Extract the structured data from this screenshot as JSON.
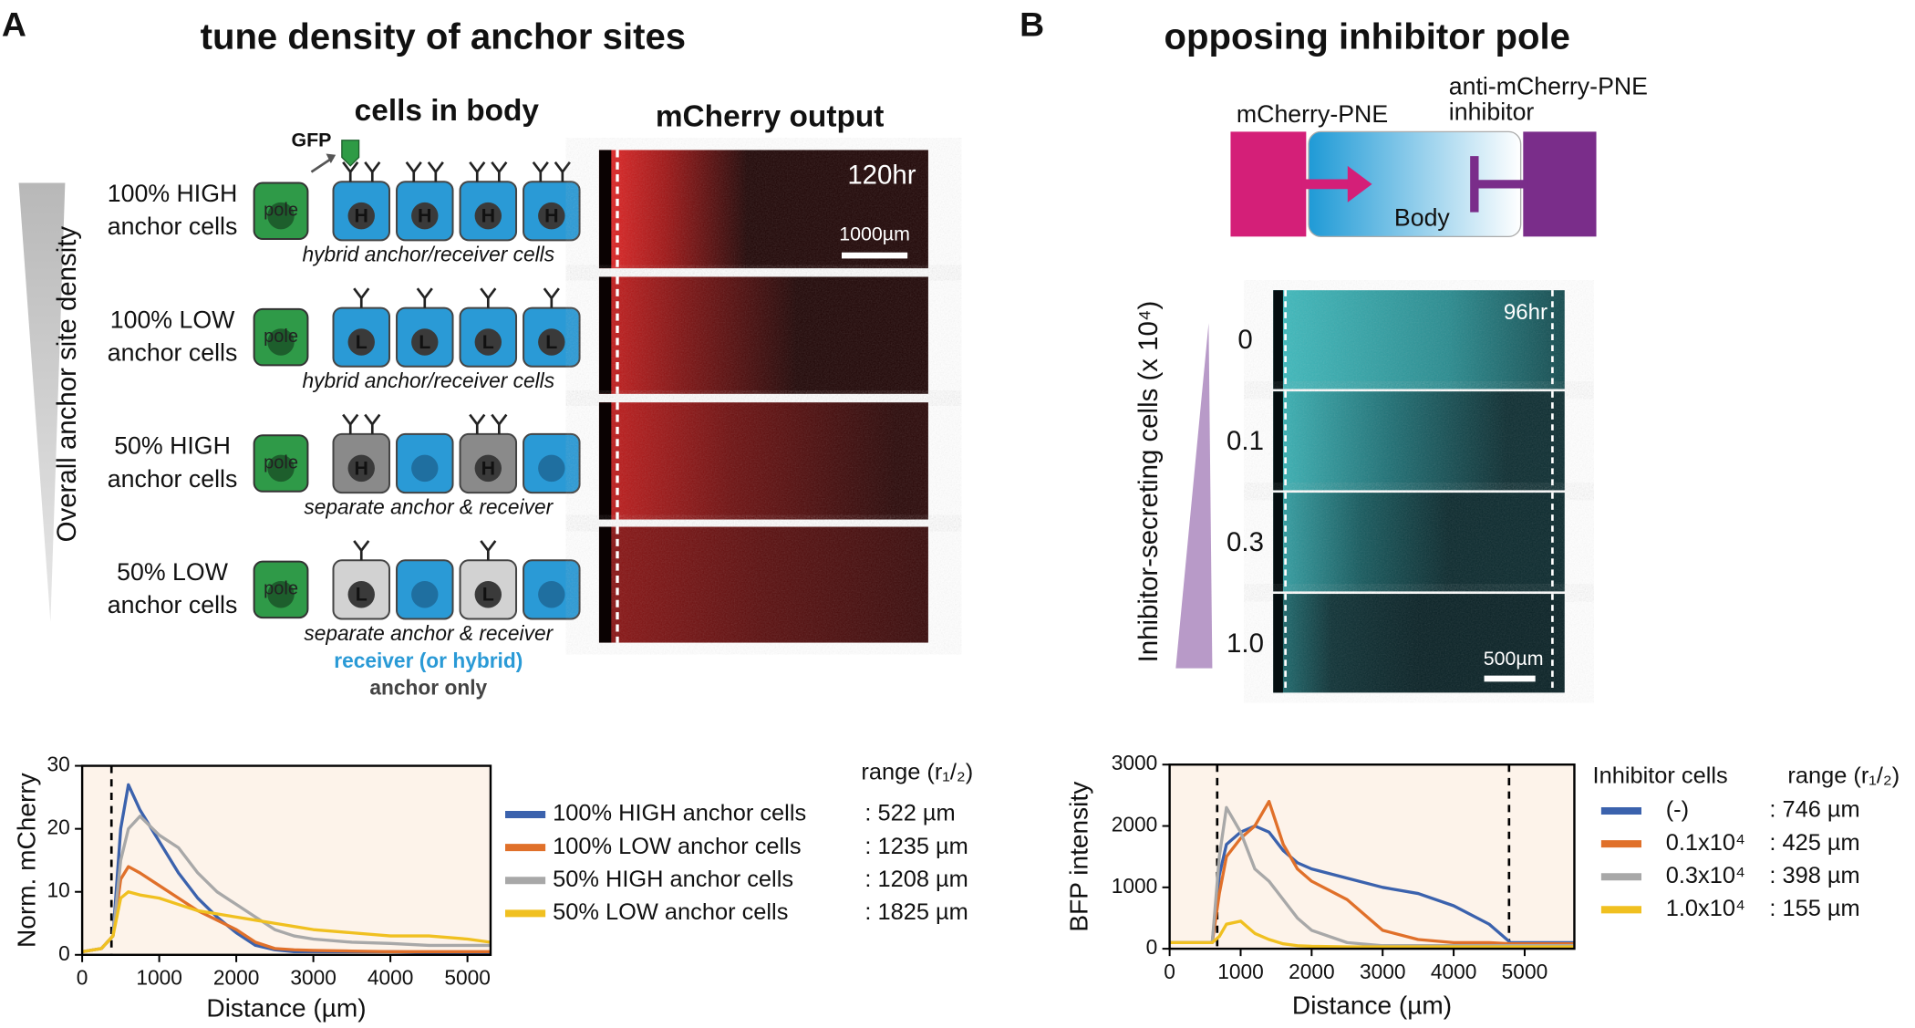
{
  "panel_a": {
    "letter": "A",
    "title": "tune density of anchor sites",
    "diagram_title": "cells in body",
    "image_title": "mCherry output",
    "axis_label": "Overall anchor site density",
    "gfp": "GFP",
    "pole": "pole",
    "rows": [
      {
        "label": [
          "100% HIGH",
          "anchor cells"
        ],
        "cells": [
          "H",
          "H",
          "H",
          "H"
        ],
        "caption": "hybrid anchor/receiver cells"
      },
      {
        "label": [
          "100% LOW",
          "anchor cells"
        ],
        "cells": [
          "L",
          "L",
          "L",
          "L"
        ],
        "caption": "hybrid anchor/receiver cells"
      },
      {
        "label": [
          "50% HIGH",
          "anchor cells"
        ],
        "cells": [
          "H",
          null,
          "H",
          null
        ],
        "caption": "separate anchor & receiver"
      },
      {
        "label": [
          "50% LOW",
          "anchor cells"
        ],
        "cells": [
          "L",
          null,
          "L",
          null
        ],
        "caption": "separate anchor & receiver"
      }
    ],
    "key": [
      "receiver (or hybrid)",
      "anchor only"
    ],
    "time": "120hr",
    "scale": "1000µm"
  },
  "panel_b": {
    "letter": "B",
    "title": "opposing inhibitor pole",
    "pole_label": "mCherry-PNE",
    "inhibitor_label": [
      "anti-mCherry-PNE",
      "inhibitor"
    ],
    "body": "Body",
    "axis_label": "Inhibitor-secreting cells (x 10⁴)",
    "rows": [
      "0",
      "0.1",
      "0.3",
      "1.0"
    ],
    "time": "96hr",
    "scale": "500µm"
  },
  "chart_data": [
    {
      "type": "line",
      "xlabel": "Distance (µm)",
      "ylabel": "Norm. mCherry",
      "x": [
        0,
        250,
        400,
        500,
        600,
        750,
        1000,
        1250,
        1500,
        1750,
        2000,
        2250,
        2500,
        2750,
        3000,
        3500,
        4000,
        4500,
        5000,
        5300
      ],
      "xlim": [
        0,
        5300
      ],
      "xticks": [
        0,
        1000,
        2000,
        3000,
        4000,
        5000
      ],
      "ylim": [
        0,
        30
      ],
      "yticks": [
        0,
        10,
        20,
        30
      ],
      "vlines": [
        380
      ],
      "range_title": "range (r₁/₂)",
      "series": [
        {
          "name": "100% HIGH anchor cells",
          "color": "#3b62ad",
          "range_label": ": 522 µm",
          "values": [
            0.5,
            1,
            3,
            20,
            27,
            23,
            18,
            13,
            9,
            6,
            3.5,
            1.5,
            0.8,
            0.5,
            0.5,
            0.5,
            0.5,
            0.4,
            0.4,
            0.4
          ]
        },
        {
          "name": "100% LOW anchor cells",
          "color": "#e0702a",
          "range_label": ": 1235 µm",
          "values": [
            0.5,
            1,
            3,
            12,
            14,
            13,
            11,
            9,
            7,
            5.5,
            4,
            2,
            1,
            0.8,
            0.7,
            0.6,
            0.5,
            0.5,
            0.5,
            0.5
          ]
        },
        {
          "name": "50% HIGH anchor cells",
          "color": "#a8a8a8",
          "range_label": ": 1208 µm",
          "values": [
            0.5,
            1,
            3,
            15,
            20,
            22,
            19,
            17,
            13,
            10,
            8,
            6,
            4,
            3,
            2.5,
            2,
            1.8,
            1.5,
            1.5,
            1.5
          ]
        },
        {
          "name": "50% LOW anchor cells",
          "color": "#f0c020",
          "range_label": ": 1825 µm",
          "values": [
            0.5,
            1,
            3,
            9,
            10,
            9.5,
            9,
            8,
            7,
            6.5,
            6,
            5.5,
            5,
            4.5,
            4,
            3.5,
            3,
            3,
            2.5,
            2
          ]
        }
      ]
    },
    {
      "type": "line",
      "xlabel": "Distance (µm)",
      "ylabel": "BFP intensity",
      "x": [
        0,
        300,
        600,
        700,
        800,
        1000,
        1200,
        1400,
        1600,
        1800,
        2000,
        2500,
        3000,
        3500,
        4000,
        4500,
        4800,
        5000,
        5700
      ],
      "xlim": [
        0,
        5700
      ],
      "xticks": [
        0,
        1000,
        2000,
        3000,
        4000,
        5000
      ],
      "ylim": [
        0,
        3000
      ],
      "yticks": [
        0,
        1000,
        2000,
        3000
      ],
      "vlines": [
        670,
        4780
      ],
      "legend_title": "Inhibitor cells",
      "range_title": "range (r₁/₂)",
      "series": [
        {
          "name": "(-)",
          "color": "#3b62ad",
          "range_label": ":  746 µm",
          "values": [
            100,
            100,
            100,
            1200,
            1700,
            1900,
            2000,
            1900,
            1600,
            1400,
            1300,
            1150,
            1000,
            900,
            700,
            400,
            100,
            100,
            100
          ]
        },
        {
          "name": "0.1x10⁴",
          "color": "#e0702a",
          "range_label": ":  425 µm",
          "values": [
            100,
            100,
            100,
            900,
            1500,
            1800,
            2000,
            2400,
            1700,
            1300,
            1100,
            800,
            300,
            150,
            100,
            100,
            80,
            80,
            80
          ]
        },
        {
          "name": "0.3x10⁴",
          "color": "#a8a8a8",
          "range_label": ":  398 µm",
          "values": [
            100,
            100,
            100,
            1500,
            2300,
            1900,
            1300,
            1100,
            800,
            500,
            300,
            100,
            50,
            50,
            50,
            50,
            50,
            50,
            50
          ]
        },
        {
          "name": "1.0x10⁴",
          "color": "#f0c020",
          "range_label": ":  155 µm",
          "values": [
            100,
            100,
            100,
            200,
            400,
            450,
            250,
            150,
            80,
            50,
            40,
            30,
            30,
            30,
            30,
            30,
            30,
            30,
            30
          ]
        }
      ]
    }
  ]
}
